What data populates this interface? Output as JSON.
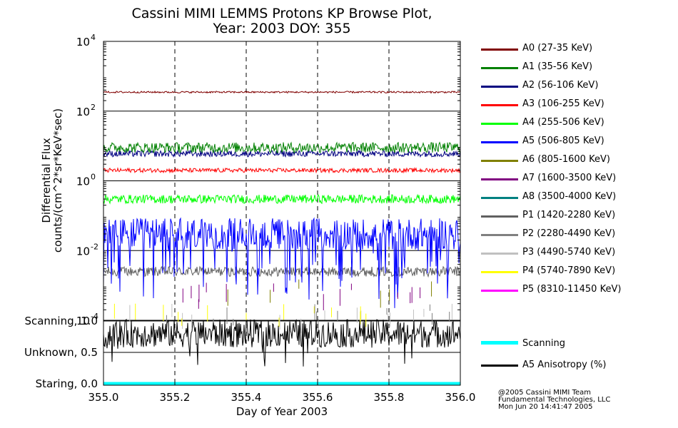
{
  "title_line1": "Cassini MIMI LEMMS Protons KP Browse Plot,",
  "title_line2": "Year: 2003 DOY: 355",
  "credits": [
    "@2005 Cassini MIMI Team",
    "Fundamental Technologies, LLC",
    "Mon Jun 20 14:41:47 2005"
  ],
  "colors": {
    "A0": "#800000",
    "A1": "#008000",
    "A2": "#000080",
    "A3": "#ff0000",
    "A4": "#00ff00",
    "A5": "#0000ff",
    "A6": "#808000",
    "A7": "#800080",
    "A8": "#008080",
    "P1": "#606060",
    "P2": "#808080",
    "P3": "#c0c0c0",
    "P4": "#ffff00",
    "P5": "#ff00ff",
    "scanning": "#00ffff",
    "anisotropy": "#000000"
  },
  "chart_data": [
    {
      "type": "line",
      "title": "Cassini MIMI LEMMS Protons KP Browse Plot, Year: 2003 DOY: 355",
      "ylabel_line1": "Differential Flux",
      "ylabel_line2": "counts/(cm^2*sr*KeV*sec)",
      "yscale": "log",
      "ylim": [
        0.0001,
        10000
      ],
      "ytick_values": [
        0.0001,
        0.01,
        1,
        100,
        10000
      ],
      "ytick_labels": [
        {
          "base": "10",
          "exp": "-4"
        },
        {
          "base": "10",
          "exp": "-2"
        },
        {
          "base": "10",
          "exp": "0"
        },
        {
          "base": "10",
          "exp": "2"
        },
        {
          "base": "10",
          "exp": "4"
        }
      ],
      "xlim": [
        355.0,
        356.0
      ],
      "grid": "dashed vertical lines at 355.2, 355.4, 355.6, 355.8",
      "series": [
        {
          "key": "A0",
          "name": "A0 (27-35 KeV)",
          "typical": 350
        },
        {
          "key": "A1",
          "name": "A1 (35-56 KeV)",
          "typical": 9
        },
        {
          "key": "A2",
          "name": "A2 (56-106 KeV)",
          "typical": 6
        },
        {
          "key": "A3",
          "name": "A3 (106-255 KeV)",
          "typical": 2
        },
        {
          "key": "A4",
          "name": "A4 (255-506 KeV)",
          "typical": 0.3
        },
        {
          "key": "A5",
          "name": "A5 (506-805 KeV)",
          "typical": 0.03
        },
        {
          "key": "A6",
          "name": "A6 (805-1600 KeV)",
          "typical": 0.001
        },
        {
          "key": "A7",
          "name": "A7 (1600-3500 KeV)",
          "typical": 0.0008
        },
        {
          "key": "A8",
          "name": "A8 (3500-4000 KeV)",
          "typical": null
        },
        {
          "key": "P1",
          "name": "P1 (1420-2280 KeV)",
          "typical": 0.0025
        },
        {
          "key": "P2",
          "name": "P2 (2280-4490 KeV)",
          "typical": 0.0002
        },
        {
          "key": "P3",
          "name": "P3 (4490-5740 KeV)",
          "typical": 0.0002
        },
        {
          "key": "P4",
          "name": "P4 (5740-7890 KeV)",
          "typical": 0.0002
        },
        {
          "key": "P5",
          "name": "P5 (8310-11450 KeV)",
          "typical": null
        }
      ]
    },
    {
      "type": "line",
      "ytick_labels": [
        "Scanning, 1.0",
        "Unknown, 0.5",
        "Staring, 0.0"
      ],
      "ytick_values": [
        1.0,
        0.5,
        0.0
      ],
      "ylim": [
        0.0,
        1.0
      ],
      "xlabel": "Day of Year 2003",
      "xtick_labels": [
        "355.0",
        "355.2",
        "355.4",
        "355.6",
        "355.8",
        "356.0"
      ],
      "xtick_values": [
        355.0,
        355.2,
        355.4,
        355.6,
        355.8,
        356.0
      ],
      "xlim": [
        355.0,
        356.0
      ],
      "series": [
        {
          "key": "scanning",
          "name": "Scanning",
          "value": 0.0
        },
        {
          "key": "anisotropy",
          "name": "A5 Anisotropy (%)",
          "typical": 0.8
        }
      ]
    }
  ]
}
